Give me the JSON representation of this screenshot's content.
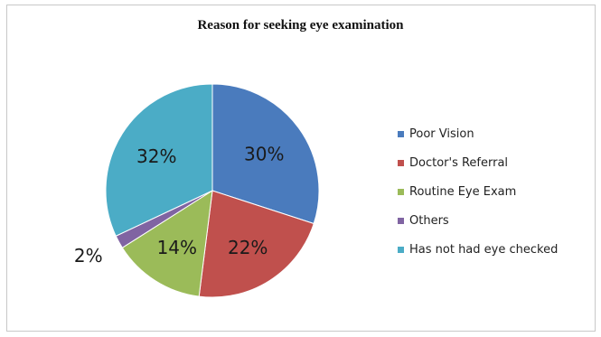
{
  "chart_data": {
    "type": "pie",
    "title": "Reason for seeking eye examination",
    "slices": [
      {
        "label": "Poor Vision",
        "value": 30,
        "display": "30%",
        "color": "#4a7bbd"
      },
      {
        "label": "Doctor's Referral",
        "value": 22,
        "display": "22%",
        "color": "#c0504d"
      },
      {
        "label": "Routine Eye Exam",
        "value": 14,
        "display": "14%",
        "color": "#9bbb59"
      },
      {
        "label": "Others",
        "value": 2,
        "display": "2%",
        "color": "#8064a2"
      },
      {
        "label": "Has not had eye checked",
        "value": 32,
        "display": "32%",
        "color": "#4bacc6"
      }
    ],
    "legend_position": "right"
  }
}
